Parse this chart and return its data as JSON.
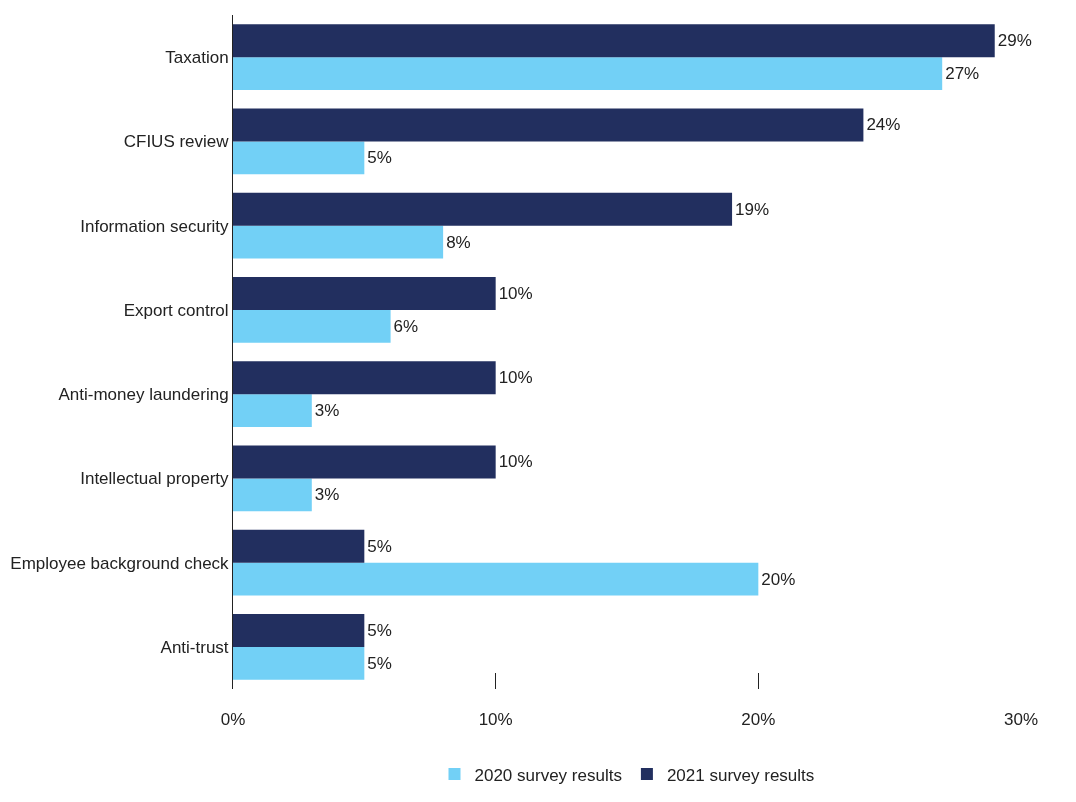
{
  "chart_data": {
    "type": "bar",
    "orientation": "horizontal",
    "categories": [
      "Taxation",
      "CFIUS review",
      "Information security",
      "Export control",
      "Anti-money laundering",
      "Intellectual property",
      "Employee background check",
      "Anti-trust"
    ],
    "series": [
      {
        "name": "2020 survey results",
        "color": "#72d0f6",
        "values": [
          27,
          5,
          8,
          6,
          3,
          3,
          20,
          5
        ],
        "value_labels": [
          "27%",
          "5%",
          "8%",
          "6%",
          "3%",
          "3%",
          "20%",
          "5%"
        ]
      },
      {
        "name": "2021 survey results",
        "color": "#222f5f",
        "values": [
          29,
          24,
          19,
          10,
          10,
          10,
          5,
          5
        ],
        "value_labels": [
          "29%",
          "24%",
          "19%",
          "10%",
          "10%",
          "10%",
          "5%",
          "5%"
        ]
      }
    ],
    "xlim": [
      0,
      30
    ],
    "xticks": [
      {
        "value": 0,
        "label": "0%"
      },
      {
        "value": 10,
        "label": "10%"
      },
      {
        "value": 20,
        "label": "20%"
      },
      {
        "value": 30,
        "label": "30%"
      }
    ],
    "legend": "bottom"
  }
}
